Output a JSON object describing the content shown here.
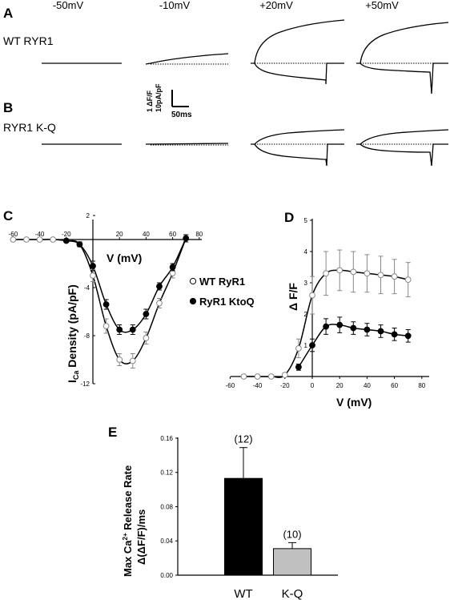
{
  "panel_a": {
    "label": "A",
    "voltages": [
      "-50mV",
      "-10mV",
      "+20mV",
      "+50mV"
    ],
    "row_label": "WT RYR1",
    "scale_bar": {
      "y_label_1": "1 ΔF/F",
      "y_label_2": "10pA/pF",
      "x_label": "50ms"
    }
  },
  "panel_b": {
    "label": "B",
    "row_label": "RYR1 K-Q"
  },
  "chart_data": [
    {
      "panel": "C",
      "type": "line",
      "xlabel": "V (mV)",
      "ylabel_main": "I",
      "ylabel_sub": "Ca",
      "ylabel_rest": " Density (pA/pF)",
      "xlim": [
        -60,
        80
      ],
      "ylim": [
        -12,
        2
      ],
      "xticks": [
        "-60",
        "-40",
        "-20",
        "20",
        "40",
        "60",
        "80"
      ],
      "xtick_values": [
        -60,
        -40,
        -20,
        20,
        40,
        60,
        80
      ],
      "yticks": [
        "2",
        "-4",
        "-8",
        "-12"
      ],
      "ytick_values": [
        2,
        -4,
        -8,
        -12
      ],
      "series": [
        {
          "name": "WT RyR1",
          "marker": "open",
          "x": [
            -60,
            -50,
            -40,
            -30,
            -20,
            -10,
            0,
            10,
            20,
            30,
            40,
            50,
            60,
            70
          ],
          "y": [
            0,
            0,
            0,
            0,
            -0.1,
            -0.4,
            -3.0,
            -7.2,
            -10.0,
            -10.1,
            -8.2,
            -5.3,
            -2.8,
            0.1
          ],
          "err": [
            0,
            0,
            0,
            0,
            0.1,
            0.2,
            0.5,
            0.6,
            0.5,
            0.6,
            0.5,
            0.4,
            0.4,
            0.3
          ]
        },
        {
          "name": "RyR1 KtoQ",
          "marker": "filled",
          "x": [
            -20,
            -10,
            0,
            10,
            20,
            30,
            40,
            50,
            60,
            70
          ],
          "y": [
            -0.1,
            -0.4,
            -2.2,
            -5.4,
            -7.5,
            -7.5,
            -6.2,
            -3.9,
            -2.3,
            0.1
          ],
          "err": [
            0.1,
            0.2,
            0.4,
            0.4,
            0.4,
            0.4,
            0.4,
            0.3,
            0.3,
            0.3
          ]
        }
      ]
    },
    {
      "panel": "D",
      "type": "line",
      "xlabel": "V (mV)",
      "ylabel": "Δ F/F",
      "xlim": [
        -60,
        80
      ],
      "ylim": [
        0,
        5
      ],
      "xticks": [
        "-60",
        "-40",
        "-20",
        "0",
        "20",
        "40",
        "60",
        "80"
      ],
      "xtick_values": [
        -60,
        -40,
        -20,
        0,
        20,
        40,
        60,
        80
      ],
      "yticks": [
        "1",
        "2",
        "3",
        "4",
        "5"
      ],
      "ytick_values": [
        1,
        2,
        3,
        4,
        5
      ],
      "series": [
        {
          "name": "WT RyR1",
          "marker": "open",
          "x": [
            -50,
            -40,
            -30,
            -20,
            -10,
            0,
            10,
            20,
            30,
            40,
            50,
            60,
            70
          ],
          "y": [
            0,
            0,
            0,
            0.05,
            0.9,
            2.6,
            3.3,
            3.4,
            3.35,
            3.3,
            3.25,
            3.2,
            3.1
          ],
          "err": [
            0,
            0,
            0,
            0.05,
            0.3,
            0.6,
            0.7,
            0.65,
            0.65,
            0.6,
            0.6,
            0.55,
            0.55
          ]
        },
        {
          "name": "RyR1 KtoQ",
          "marker": "filled",
          "x": [
            -10,
            0,
            10,
            20,
            30,
            40,
            50,
            60,
            70
          ],
          "y": [
            0.3,
            1.0,
            1.6,
            1.65,
            1.55,
            1.5,
            1.45,
            1.35,
            1.3
          ],
          "err": [
            0.1,
            0.2,
            0.25,
            0.25,
            0.2,
            0.2,
            0.2,
            0.2,
            0.2
          ]
        }
      ]
    },
    {
      "panel": "E",
      "type": "bar",
      "ylabel_line1": "Max Ca",
      "ylabel_sup": "2+",
      "ylabel_line1_rest": " Release Rate",
      "ylabel_line2": "Δ(ΔF/F)/ms",
      "ylim": [
        0,
        0.16
      ],
      "yticks": [
        "0.00",
        "0.04",
        "0.08",
        "0.12",
        "0.16"
      ],
      "ytick_values": [
        0,
        0.04,
        0.08,
        0.12,
        0.16
      ],
      "categories": [
        "WT",
        "K-Q"
      ],
      "values": [
        0.113,
        0.031
      ],
      "err": [
        0.036,
        0.007
      ],
      "n_labels": [
        "(12)",
        "(10)"
      ],
      "colors": [
        "#000000",
        "#c0c0c0"
      ]
    }
  ]
}
